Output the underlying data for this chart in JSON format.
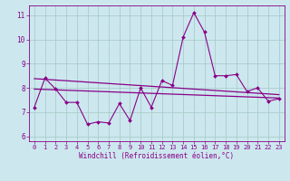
{
  "xlabel": "Windchill (Refroidissement éolien,°C)",
  "xlim": [
    -0.5,
    23.5
  ],
  "ylim": [
    5.8,
    11.4
  ],
  "yticks": [
    6,
    7,
    8,
    9,
    10,
    11
  ],
  "xticks": [
    0,
    1,
    2,
    3,
    4,
    5,
    6,
    7,
    8,
    9,
    10,
    11,
    12,
    13,
    14,
    15,
    16,
    17,
    18,
    19,
    20,
    21,
    22,
    23
  ],
  "bg_color": "#cce8ee",
  "line_color": "#880088",
  "grid_color": "#aacccc",
  "main_data_x": [
    0,
    1,
    2,
    3,
    4,
    5,
    6,
    7,
    8,
    9,
    10,
    11,
    12,
    13,
    14,
    15,
    16,
    17,
    18,
    19,
    20,
    21,
    22,
    23
  ],
  "main_data_y": [
    7.2,
    8.4,
    7.95,
    7.4,
    7.4,
    6.5,
    6.6,
    6.55,
    7.35,
    6.65,
    8.0,
    7.2,
    8.3,
    8.1,
    10.1,
    11.1,
    10.3,
    8.5,
    8.5,
    8.55,
    7.85,
    8.0,
    7.45,
    7.55
  ],
  "trend1_x": [
    0,
    23
  ],
  "trend1_y": [
    8.38,
    7.72
  ],
  "trend2_x": [
    0,
    23
  ],
  "trend2_y": [
    7.95,
    7.58
  ]
}
